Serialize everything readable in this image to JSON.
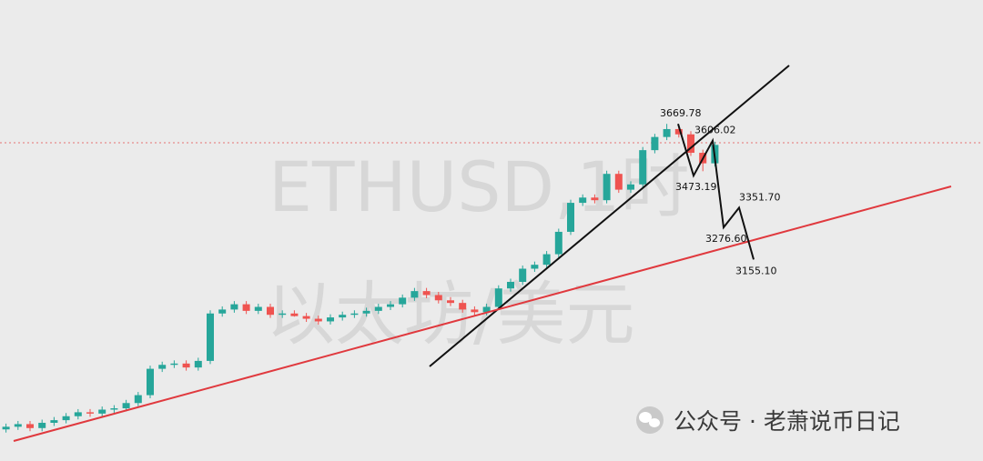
{
  "chart_data": {
    "type": "candlestick",
    "watermark_symbol": "ETHUSD,1时",
    "watermark_name": "以太坊/美元",
    "credit": "公众号 · 老萧说币日记",
    "ylim": [
      2390,
      4140
    ],
    "up_color": "#26a69a",
    "down_color": "#ef5350",
    "open": [
      2510,
      2520,
      2530,
      2515,
      2535,
      2545,
      2560,
      2575,
      2570,
      2585,
      2590,
      2610,
      2640,
      2740,
      2755,
      2760,
      2745,
      2770,
      2950,
      2965,
      2985,
      2960,
      2975,
      2945,
      2950,
      2940,
      2930,
      2920,
      2935,
      2945,
      2950,
      2960,
      2975,
      2985,
      3010,
      3035,
      3020,
      3000,
      2990,
      2965,
      2955,
      2975,
      3045,
      3070,
      3120,
      3135,
      3175,
      3260,
      3370,
      3390,
      3380,
      3480,
      3420,
      3440,
      3570,
      3620,
      3650,
      3630,
      3560,
      3520
    ],
    "high": [
      2532,
      2542,
      2542,
      2547,
      2557,
      2572,
      2587,
      2587,
      2597,
      2602,
      2622,
      2652,
      2752,
      2767,
      2772,
      2772,
      2782,
      2962,
      2977,
      2997,
      2997,
      2987,
      2987,
      2962,
      2962,
      2952,
      2942,
      2947,
      2957,
      2962,
      2972,
      2987,
      2997,
      3022,
      3047,
      3047,
      3032,
      3012,
      3002,
      2977,
      2987,
      3057,
      3082,
      3132,
      3147,
      3187,
      3272,
      3382,
      3402,
      3402,
      3492,
      3492,
      3452,
      3582,
      3632,
      3669.78,
      3662,
      3642,
      3572,
      3602
    ],
    "low": [
      2498,
      2508,
      2503,
      2503,
      2523,
      2533,
      2548,
      2558,
      2558,
      2573,
      2578,
      2598,
      2628,
      2728,
      2743,
      2733,
      2733,
      2758,
      2938,
      2953,
      2948,
      2948,
      2933,
      2933,
      2938,
      2918,
      2908,
      2908,
      2923,
      2933,
      2938,
      2948,
      2963,
      2973,
      2998,
      3008,
      2988,
      2978,
      2953,
      2943,
      2943,
      2963,
      3033,
      3058,
      3108,
      3123,
      3163,
      3248,
      3358,
      3368,
      3368,
      3408,
      3408,
      3428,
      3558,
      3608,
      3618,
      3548,
      3490,
      3508
    ],
    "close": [
      2520,
      2530,
      2515,
      2535,
      2545,
      2560,
      2575,
      2570,
      2585,
      2590,
      2610,
      2640,
      2740,
      2755,
      2760,
      2745,
      2770,
      2950,
      2965,
      2985,
      2960,
      2975,
      2945,
      2950,
      2940,
      2930,
      2920,
      2935,
      2945,
      2950,
      2960,
      2975,
      2985,
      3010,
      3035,
      3020,
      3000,
      2990,
      2965,
      2955,
      2975,
      3045,
      3070,
      3120,
      3135,
      3175,
      3260,
      3370,
      3390,
      3380,
      3480,
      3420,
      3440,
      3570,
      3620,
      3650,
      3630,
      3560,
      3520,
      3590
    ],
    "annotations": [
      {
        "value": 3669.78,
        "label": "3669.78"
      },
      {
        "value": 3473.19,
        "label": "3473.19"
      },
      {
        "value": 3606.02,
        "label": "3606.02"
      },
      {
        "value": 3276.6,
        "label": "3276.60"
      },
      {
        "value": 3351.7,
        "label": "3351.70"
      },
      {
        "value": 3155.1,
        "label": "3155.10"
      }
    ]
  }
}
